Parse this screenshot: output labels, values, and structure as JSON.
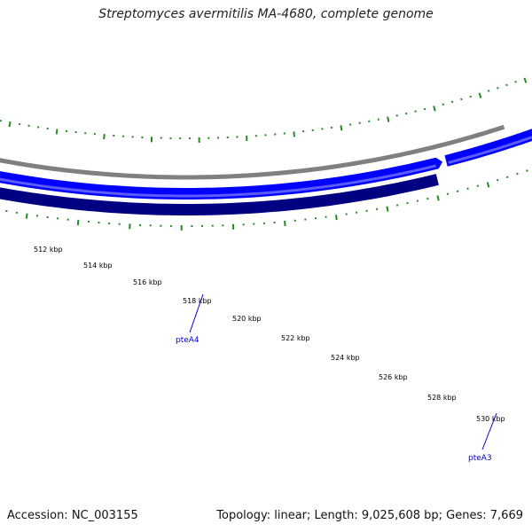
{
  "title": "Streptomyces avermitilis MA-4680, complete genome",
  "accession_text": "Accession: NC_003155",
  "summary_text": "Topology: linear; Length: 9,025,608 bp; Genes: 7,669",
  "colors": {
    "background": "#ffffff",
    "outer_track": "#808080",
    "forward_genes": "#0000ff",
    "forward_highlight": "#5b5bff",
    "reverse_genes": "#000080",
    "tick_marks": "#228b22",
    "gene_label": "#0000cc",
    "ruler_label": "#000000"
  },
  "ruler": {
    "unit": "kbp",
    "labels": [
      "512 kbp",
      "514 kbp",
      "516 kbp",
      "518 kbp",
      "520 kbp",
      "522 kbp",
      "524 kbp",
      "526 kbp",
      "528 kbp",
      "530 kbp"
    ]
  },
  "genes": [
    {
      "name": "pteA4",
      "strand": "reverse"
    },
    {
      "name": "pteA3",
      "strand": "forward"
    }
  ]
}
